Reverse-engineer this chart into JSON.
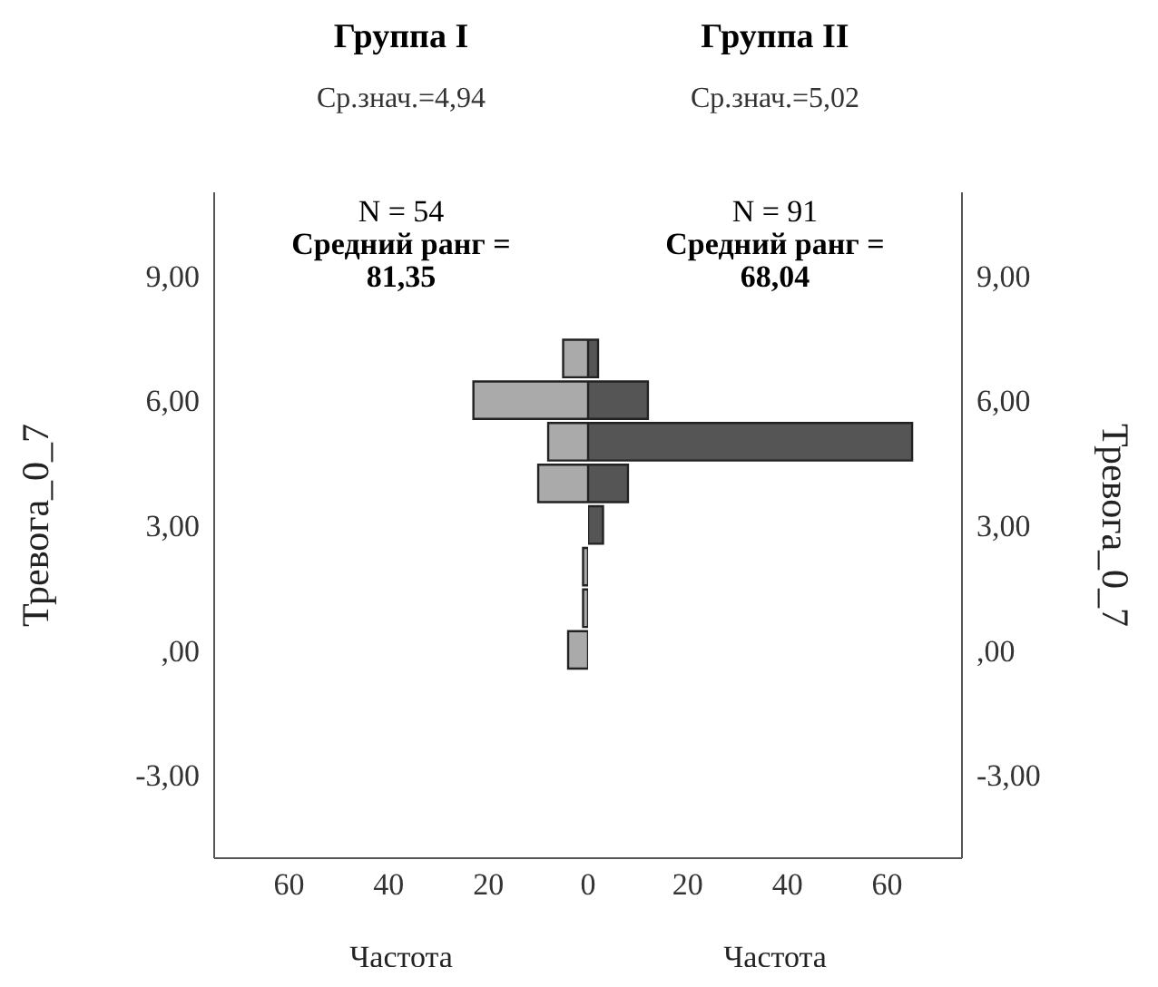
{
  "chart_data": [
    {
      "type": "bar",
      "orientation": "horizontal",
      "title": "Группа I",
      "subtitle": "Ср.знач.=4,94",
      "xlabel": "Частота",
      "ylabel": "Тревога_0_7",
      "annotations": [
        "N = 54",
        "Средний ранг = 81,35"
      ],
      "x": [
        0,
        1,
        2,
        3,
        4,
        5,
        6,
        7
      ],
      "series": [
        {
          "color": "#aaaaaa",
          "values": [
            4,
            1,
            1,
            0,
            10,
            8,
            23,
            5
          ]
        }
      ],
      "xlim": [
        75,
        0
      ],
      "xticks": [
        60,
        40,
        20
      ],
      "ylim": [
        -5,
        11
      ],
      "yticks": [
        {
          "value": -3,
          "label": "-3,00"
        },
        {
          "value": 0,
          "label": ",00"
        },
        {
          "value": 3,
          "label": "3,00"
        },
        {
          "value": 6,
          "label": "6,00"
        },
        {
          "value": 9,
          "label": "9,00"
        }
      ]
    },
    {
      "type": "bar",
      "orientation": "horizontal",
      "title": "Группа II",
      "subtitle": "Ср.знач.=5,02",
      "xlabel": "Частота",
      "ylabel": "Тревога_0_7",
      "annotations": [
        "N = 91",
        "Средний ранг = 68,04"
      ],
      "x": [
        0,
        1,
        2,
        3,
        4,
        5,
        6,
        7
      ],
      "series": [
        {
          "color": "#555555",
          "values": [
            0,
            0,
            0,
            3,
            8,
            65,
            12,
            2
          ]
        }
      ],
      "xlim": [
        0,
        75
      ],
      "xticks": [
        0,
        20,
        40,
        60
      ],
      "ylim": [
        -5,
        11
      ],
      "yticks": [
        {
          "value": -3,
          "label": "-3,00"
        },
        {
          "value": 0,
          "label": ",00"
        },
        {
          "value": 3,
          "label": "3,00"
        },
        {
          "value": 6,
          "label": "6,00"
        },
        {
          "value": 9,
          "label": "9,00"
        }
      ]
    }
  ]
}
